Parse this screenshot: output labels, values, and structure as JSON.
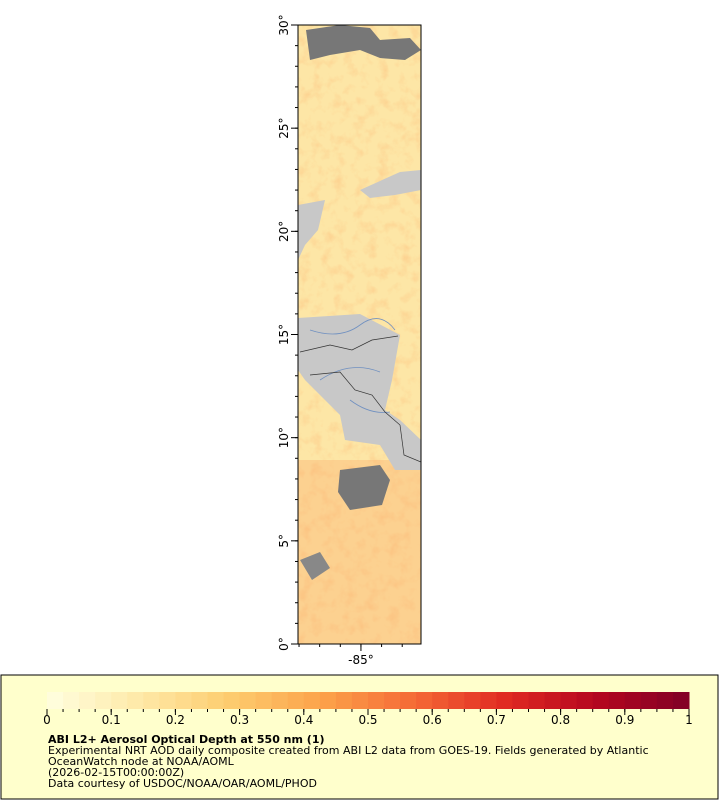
{
  "map": {
    "xlim": [
      -88.05,
      -82.09
    ],
    "ylim": [
      0,
      30
    ],
    "xticks": [
      {
        "value": -85,
        "label": "-85°"
      }
    ],
    "yticks": [
      {
        "value": 0,
        "label": "0°"
      },
      {
        "value": 5,
        "label": "5°"
      },
      {
        "value": 10,
        "label": "10°"
      },
      {
        "value": 15,
        "label": "15°"
      },
      {
        "value": 20,
        "label": "20°"
      },
      {
        "value": 25,
        "label": "25°"
      },
      {
        "value": 30,
        "label": "30°"
      }
    ]
  },
  "colorbar": {
    "range": [
      0,
      1
    ],
    "ticks": [
      0,
      0.1,
      0.2,
      0.3,
      0.4,
      0.5,
      0.6,
      0.7,
      0.8,
      0.9,
      1
    ],
    "colormap": [
      "#ffffe0",
      "#fee9a8",
      "#fdcc6e",
      "#fca24a",
      "#f56a36",
      "#e02a22",
      "#b4061f",
      "#800026"
    ]
  },
  "legend": {
    "title": "ABI L2+ Aerosol Optical Depth at 550 nm (1)",
    "lines": [
      "Experimental NRT AOD daily composite created from ABI L2 data from GOES-19. Fields generated by Atlantic",
      "OceanWatch node at NOAA/AOML",
      "(2026-02-15T00:00:00Z)",
      "Data courtesy of USDOC/NOAA/OAR/AOML/PHOD"
    ]
  }
}
